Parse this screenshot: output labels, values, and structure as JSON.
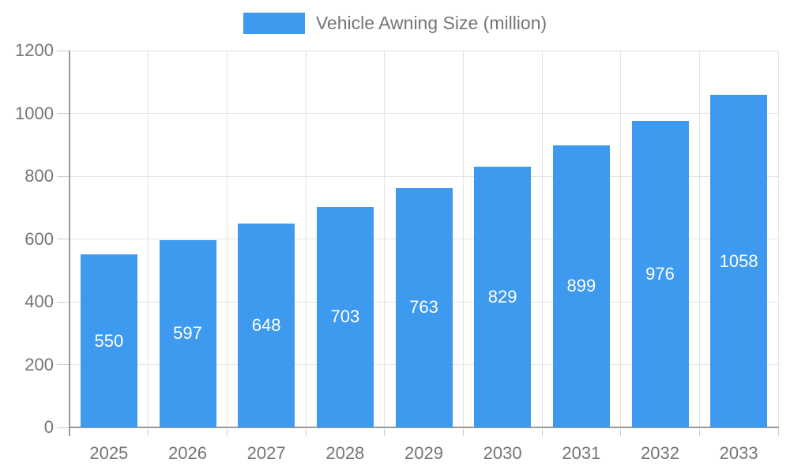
{
  "chart_data": {
    "type": "bar",
    "title": "Vehicle Awning Size (million)",
    "series_label": "Vehicle Awning Size (million)",
    "categories": [
      "2025",
      "2026",
      "2027",
      "2028",
      "2029",
      "2030",
      "2031",
      "2032",
      "2033"
    ],
    "values": [
      550,
      597,
      648,
      703,
      763,
      829,
      899,
      976,
      1058
    ],
    "xlabel": "",
    "ylabel": "",
    "ylim": [
      0,
      1200
    ],
    "yticks": [
      0,
      200,
      400,
      600,
      800,
      1000,
      1200
    ],
    "grid": true,
    "legend_position": "top-center",
    "bar_color": "#3D9AEE",
    "bar_label_color": "#FFFFFF",
    "axis_color": "#9A9A9A",
    "grid_color": "#E3E3E3",
    "tick_color": "#CCCCCC",
    "text_color": "#757575"
  }
}
